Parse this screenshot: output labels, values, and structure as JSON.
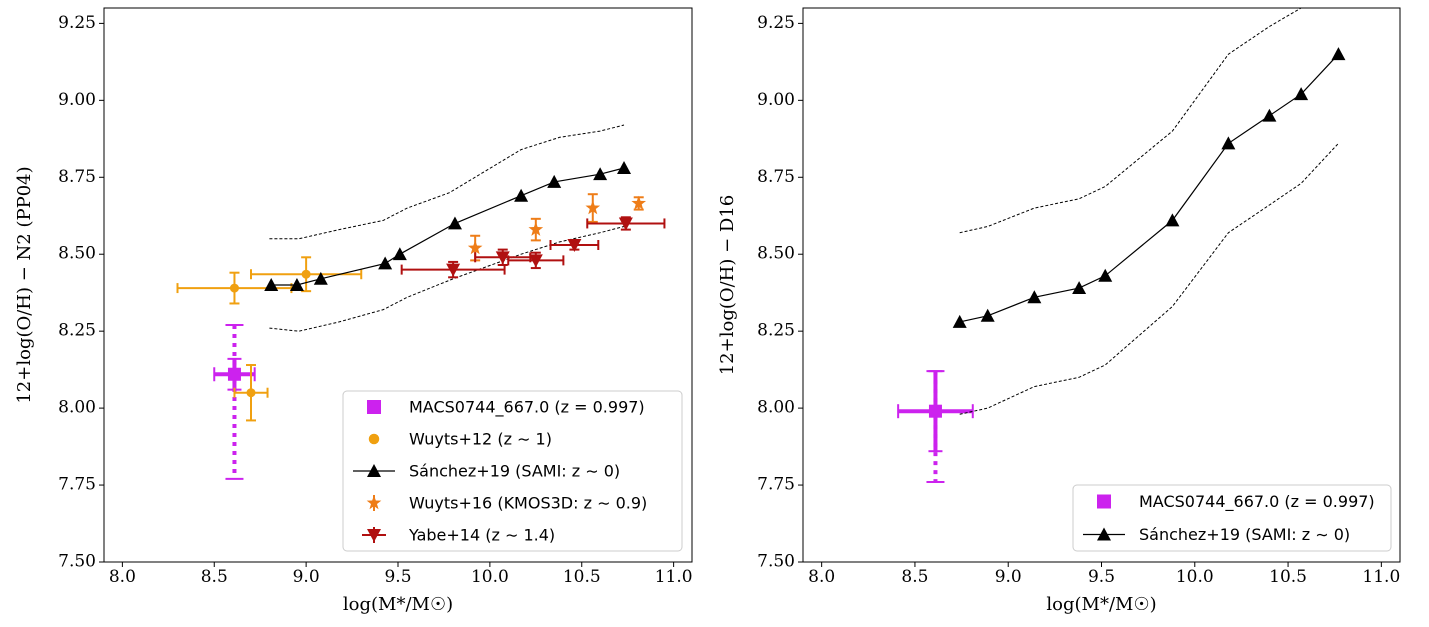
{
  "chart_data": [
    {
      "type": "scatter",
      "ylabel": "12+log(O/H) − N2 (PP04)",
      "xlabel": "log(M*/M☉)",
      "xlim": [
        7.9,
        11.1
      ],
      "ylim": [
        7.5,
        9.3
      ],
      "xticks": [
        "8.0",
        "8.5",
        "9.0",
        "9.5",
        "10.0",
        "10.5",
        "11.0"
      ],
      "yticks": [
        "7.50",
        "7.75",
        "8.00",
        "8.25",
        "8.50",
        "8.75",
        "9.00",
        "9.25"
      ],
      "legend_position": "bottom-right",
      "series": [
        {
          "name": "MACS0744_667.0 (z = 0.997)",
          "marker": "square",
          "color": "#cc22ee",
          "points": [
            {
              "x": 8.61,
              "y": 8.11,
              "xerr": 0.11,
              "yerr": [
                0.05,
                0.05
              ],
              "yerr_sys": [
                0.34,
                0.16
              ]
            }
          ]
        },
        {
          "name": "Wuyts+12 (z ∼ 1)",
          "marker": "circle",
          "color": "#f0a010",
          "points": [
            {
              "x": 8.61,
              "y": 8.39,
              "xerr": 0.31,
              "yerr": [
                0.05,
                0.05
              ]
            },
            {
              "x": 8.7,
              "y": 8.05,
              "xerr": 0.09,
              "yerr": [
                0.09,
                0.09
              ]
            },
            {
              "x": 9.0,
              "y": 8.435,
              "xerr": 0.3,
              "yerr": [
                0.055,
                0.055
              ]
            }
          ]
        },
        {
          "name": "Sánchez+19 (SAMI: z ∼ 0)",
          "marker": "triangle-up",
          "color": "#000000",
          "connected": true,
          "points": [
            {
              "x": 8.81,
              "y": 8.4
            },
            {
              "x": 8.95,
              "y": 8.4
            },
            {
              "x": 9.08,
              "y": 8.42
            },
            {
              "x": 9.43,
              "y": 8.47
            },
            {
              "x": 9.51,
              "y": 8.5
            },
            {
              "x": 9.81,
              "y": 8.6
            },
            {
              "x": 10.17,
              "y": 8.69
            },
            {
              "x": 10.35,
              "y": 8.735
            },
            {
              "x": 10.6,
              "y": 8.76
            },
            {
              "x": 10.73,
              "y": 8.78
            }
          ],
          "upper_envelope": [
            [
              8.8,
              8.55
            ],
            [
              8.96,
              8.55
            ],
            [
              9.18,
              8.58
            ],
            [
              9.42,
              8.61
            ],
            [
              9.55,
              8.65
            ],
            [
              9.78,
              8.7
            ],
            [
              10.17,
              8.84
            ],
            [
              10.38,
              8.88
            ],
            [
              10.6,
              8.9
            ],
            [
              10.73,
              8.92
            ]
          ],
          "lower_envelope": [
            [
              8.8,
              8.26
            ],
            [
              8.96,
              8.25
            ],
            [
              9.18,
              8.28
            ],
            [
              9.42,
              8.32
            ],
            [
              9.55,
              8.36
            ],
            [
              9.8,
              8.42
            ],
            [
              10.17,
              8.5
            ],
            [
              10.38,
              8.54
            ],
            [
              10.6,
              8.57
            ],
            [
              10.73,
              8.59
            ]
          ]
        },
        {
          "name": "Wuyts+16 (KMOS3D: z ∼ 0.9)",
          "marker": "star",
          "color": "#ee7d18",
          "points": [
            {
              "x": 9.92,
              "y": 8.52,
              "yerr": [
                0.04,
                0.04
              ]
            },
            {
              "x": 10.25,
              "y": 8.58,
              "yerr": [
                0.035,
                0.035
              ]
            },
            {
              "x": 10.56,
              "y": 8.65,
              "yerr": [
                0.045,
                0.045
              ]
            },
            {
              "x": 10.81,
              "y": 8.665,
              "yerr": [
                0.02,
                0.02
              ]
            }
          ]
        },
        {
          "name": "Yabe+14 (z ∼ 1.4)",
          "marker": "triangle-down",
          "color": "#b01010",
          "points": [
            {
              "x": 9.8,
              "y": 8.45,
              "xerr": 0.28,
              "yerr": [
                0.025,
                0.025
              ]
            },
            {
              "x": 10.07,
              "y": 8.49,
              "xerr": 0.15,
              "yerr": [
                0.025,
                0.025
              ]
            },
            {
              "x": 10.25,
              "y": 8.48,
              "xerr": 0.15,
              "yerr": [
                0.025,
                0.025
              ]
            },
            {
              "x": 10.46,
              "y": 8.53,
              "xerr": 0.13,
              "yerr": [
                0.015,
                0.015
              ]
            },
            {
              "x": 10.74,
              "y": 8.6,
              "xerr": 0.21,
              "yerr": [
                0.02,
                0.02
              ]
            }
          ]
        }
      ]
    },
    {
      "type": "scatter",
      "ylabel": "12+log(O/H) − D16",
      "xlabel": "log(M*/M☉)",
      "xlim": [
        7.9,
        11.1
      ],
      "ylim": [
        7.5,
        9.3
      ],
      "xticks": [
        "8.0",
        "8.5",
        "9.0",
        "9.5",
        "10.0",
        "10.5",
        "11.0"
      ],
      "yticks": [
        "7.50",
        "7.75",
        "8.00",
        "8.25",
        "8.50",
        "8.75",
        "9.00",
        "9.25"
      ],
      "legend_position": "bottom-right",
      "series": [
        {
          "name": "MACS0744_667.0 (z = 0.997)",
          "marker": "square",
          "color": "#cc22ee",
          "points": [
            {
              "x": 8.61,
              "y": 7.99,
              "xerr": 0.2,
              "yerr": [
                0.13,
                0.13
              ],
              "yerr_sys": [
                0.23,
                0.13
              ]
            }
          ]
        },
        {
          "name": "Sánchez+19 (SAMI: z ∼ 0)",
          "marker": "triangle-up",
          "color": "#000000",
          "connected": true,
          "points": [
            {
              "x": 8.74,
              "y": 8.28
            },
            {
              "x": 8.89,
              "y": 8.3
            },
            {
              "x": 9.14,
              "y": 8.36
            },
            {
              "x": 9.38,
              "y": 8.39
            },
            {
              "x": 9.52,
              "y": 8.43
            },
            {
              "x": 9.88,
              "y": 8.61
            },
            {
              "x": 10.18,
              "y": 8.86
            },
            {
              "x": 10.4,
              "y": 8.95
            },
            {
              "x": 10.57,
              "y": 9.02
            },
            {
              "x": 10.77,
              "y": 9.15
            }
          ],
          "upper_envelope": [
            [
              8.74,
              8.57
            ],
            [
              8.89,
              8.59
            ],
            [
              9.14,
              8.65
            ],
            [
              9.38,
              8.68
            ],
            [
              9.52,
              8.72
            ],
            [
              9.88,
              8.9
            ],
            [
              10.18,
              9.15
            ],
            [
              10.4,
              9.24
            ],
            [
              10.57,
              9.3
            ]
          ],
          "lower_envelope": [
            [
              8.74,
              7.98
            ],
            [
              8.89,
              8.0
            ],
            [
              9.14,
              8.07
            ],
            [
              9.38,
              8.1
            ],
            [
              9.52,
              8.14
            ],
            [
              9.88,
              8.33
            ],
            [
              10.18,
              8.57
            ],
            [
              10.4,
              8.66
            ],
            [
              10.57,
              8.73
            ],
            [
              10.77,
              8.86
            ]
          ]
        }
      ]
    }
  ]
}
